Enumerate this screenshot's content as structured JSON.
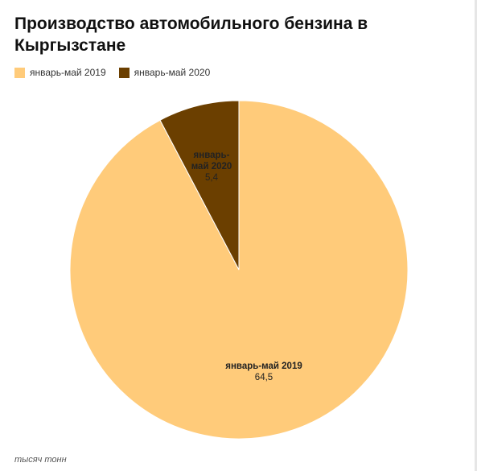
{
  "chart_data": {
    "type": "pie",
    "title": "Производство автомобильного бензина в Кыргызстане",
    "unit_note": "тысяч тонн",
    "legend_position": "top-left",
    "slices": [
      {
        "label": "январь-май 2019",
        "value": 64.5,
        "value_text": "64,5",
        "color": "#FFCB7A",
        "label_lines": [
          "январь-май 2019"
        ]
      },
      {
        "label": "январь-май 2020",
        "value": 5.4,
        "value_text": "5,4",
        "color": "#6B3F00",
        "label_lines": [
          "январь-",
          "май 2020"
        ]
      }
    ]
  }
}
